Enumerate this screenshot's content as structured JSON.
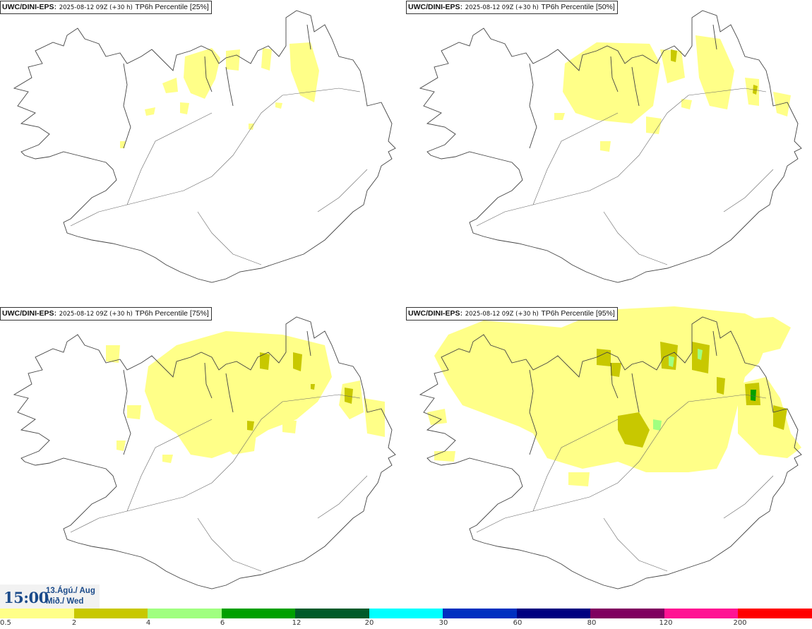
{
  "panels": [
    {
      "model": "UWC/DINI-EPS",
      "run": "2025-08-12 09Z (+30 h)",
      "param": "TP6h Percentile [25%]"
    },
    {
      "model": "UWC/DINI-EPS",
      "run": "2025-08-12 09Z (+30 h)",
      "param": "TP6h Percentile [50%]"
    },
    {
      "model": "UWC/DINI-EPS",
      "run": "2025-08-12 09Z (+30 h)",
      "param": "TP6h Percentile [75%]"
    },
    {
      "model": "UWC/DINI-EPS",
      "run": "2025-08-12 09Z (+30 h)",
      "param": "TP6h Percentile [95%]"
    }
  ],
  "valid_time": {
    "time": "15:00",
    "date_line1": "13.Ágú./ Aug",
    "date_line2": "Mið./ Wed"
  },
  "colorbar": {
    "labels": [
      "0.5",
      "2",
      "4",
      "6",
      "12",
      "20",
      "30",
      "60",
      "80",
      "120",
      "200"
    ],
    "colors": [
      "#ffff88",
      "#c8c800",
      "#a0ff80",
      "#00a000",
      "#005a2a",
      "#00ffff",
      "#0030c0",
      "#000080",
      "#800060",
      "#ff1493",
      "#ff0000"
    ]
  }
}
